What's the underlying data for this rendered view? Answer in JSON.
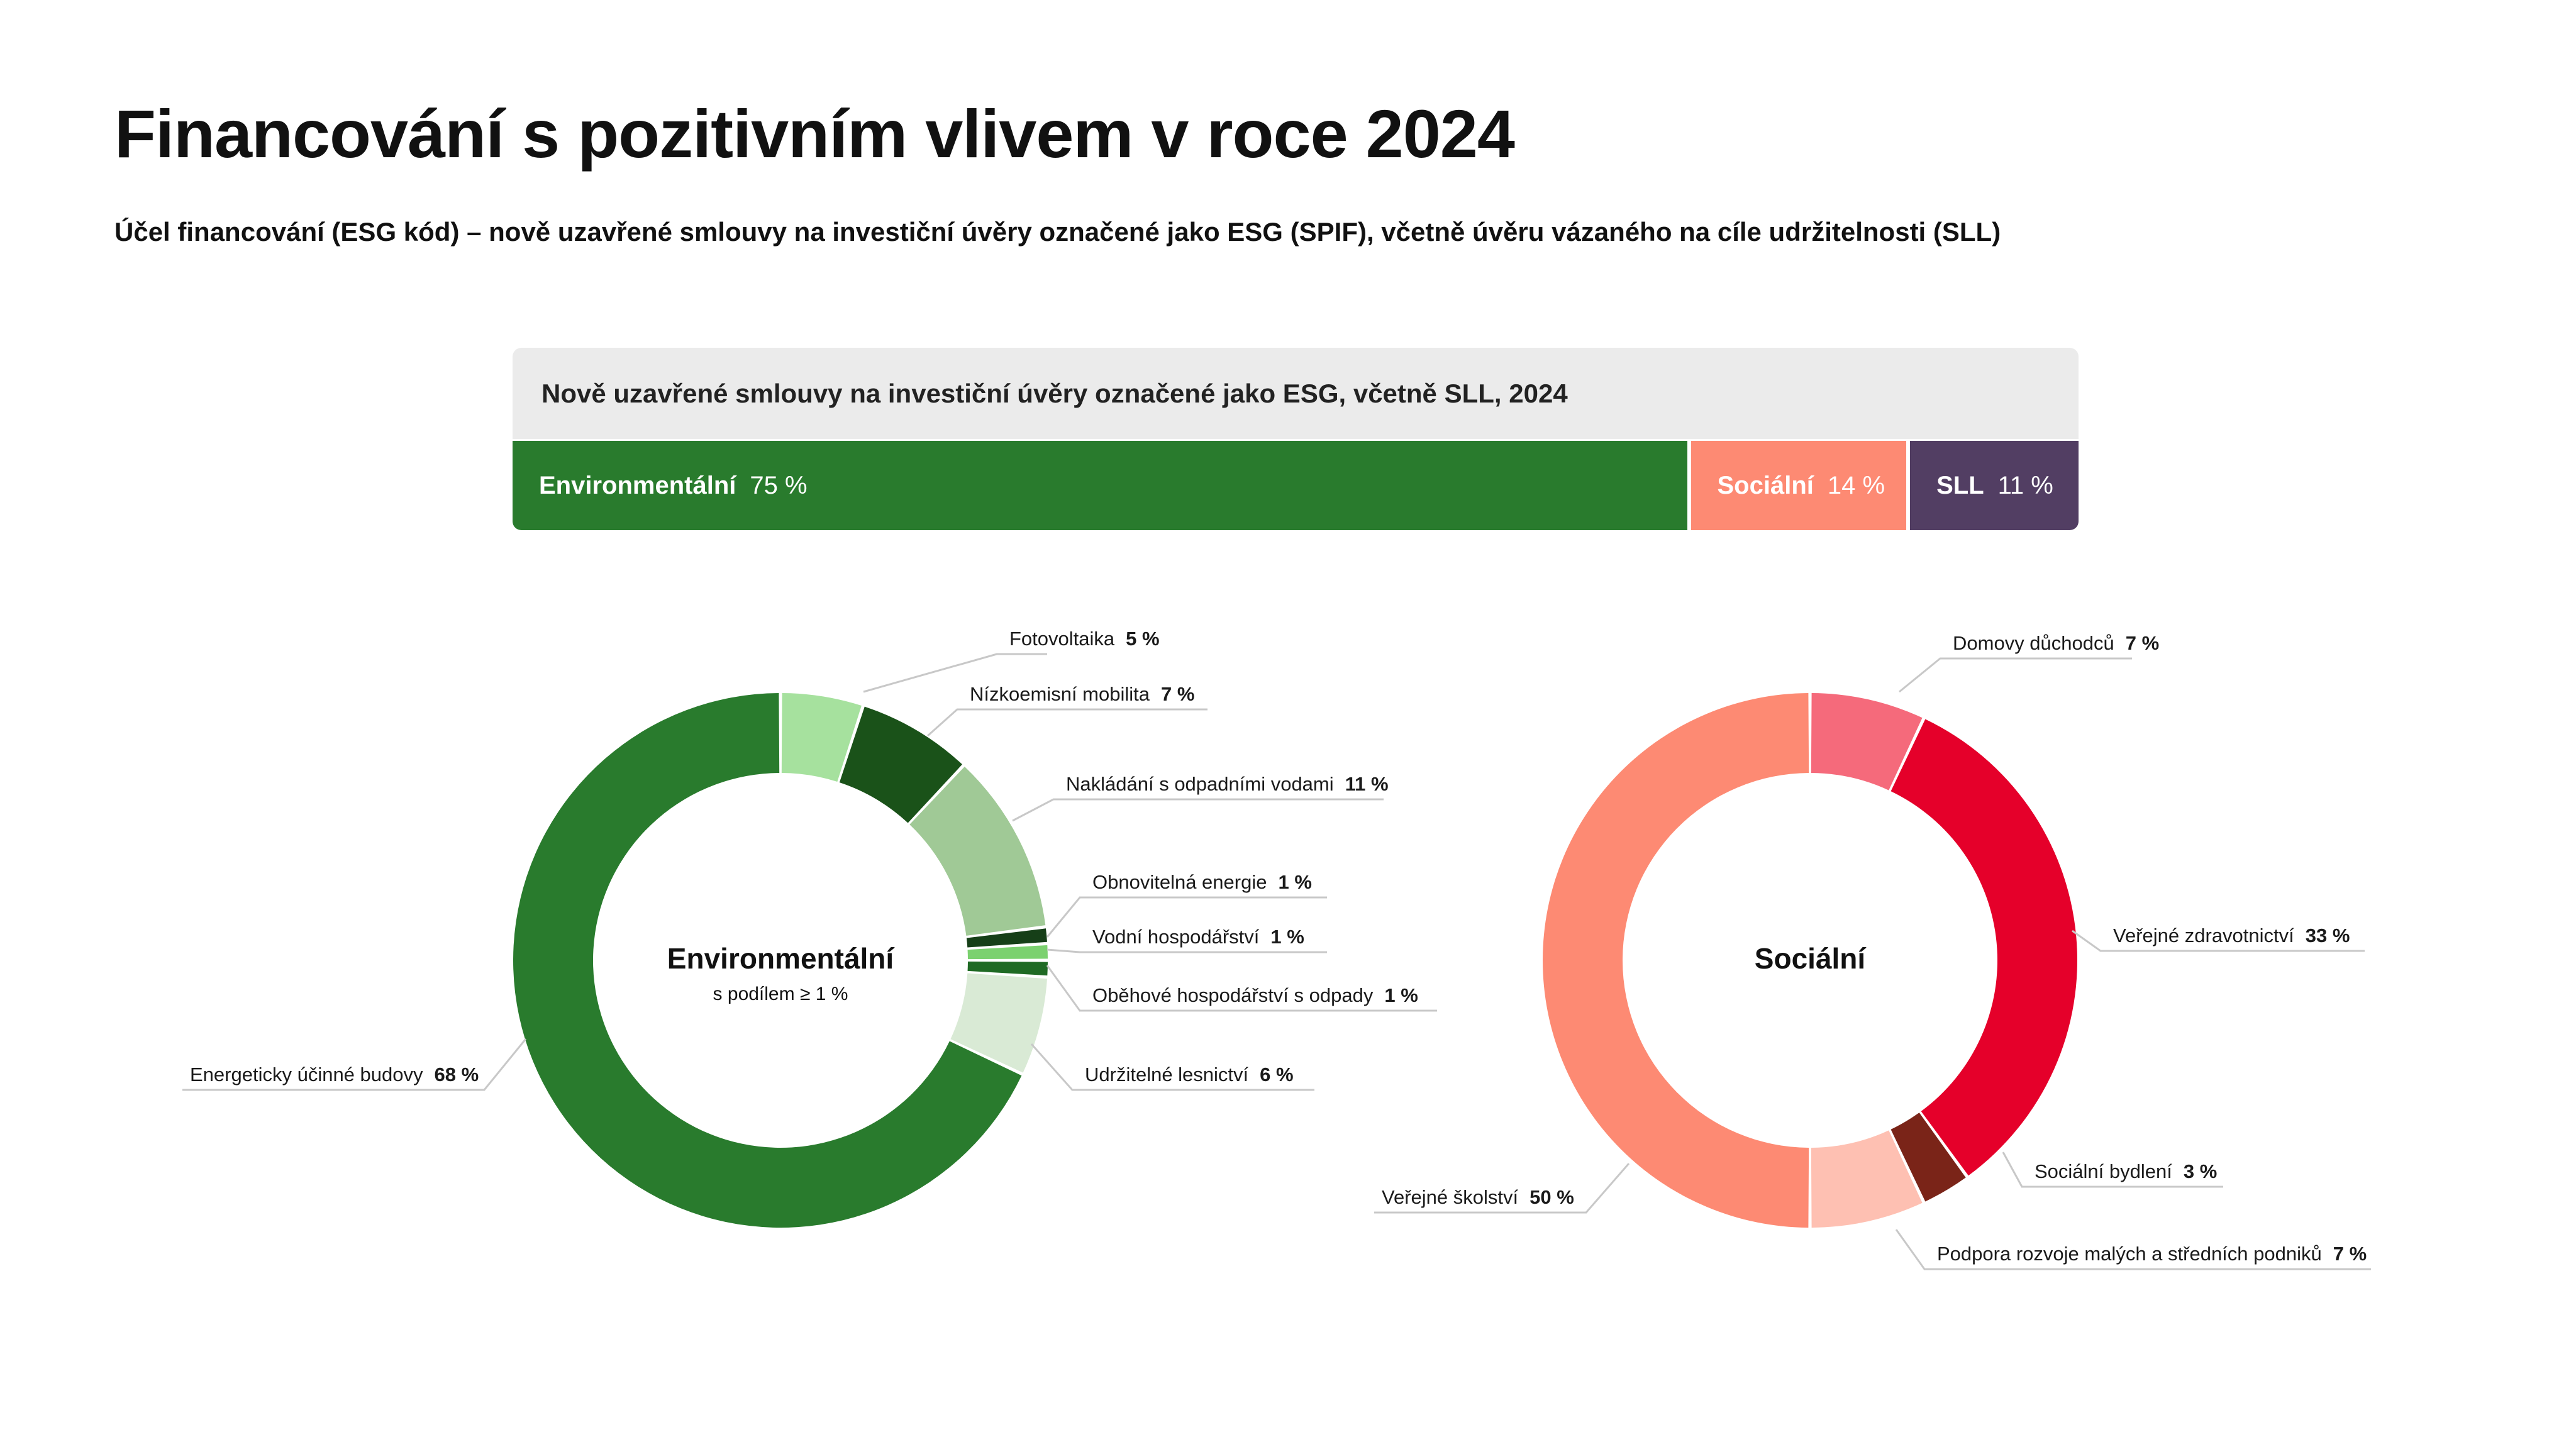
{
  "title": "Financování s pozitivním vlivem v roce 2024",
  "subtitle": "Účel financování (ESG kód) – nově uzavřené smlouvy na investiční úvěry označené jako ESG (SPIF), včetně úvěru vázaného na cíle udržitelnosti (SLL)",
  "chart_data": [
    {
      "type": "bar",
      "orientation": "horizontal-stacked",
      "title": "Nově uzavřené smlouvy na investiční úvěry označené jako ESG, včetně SLL, 2024",
      "segments": [
        {
          "label": "Environmentální",
          "value": 75,
          "value_label": "75 %",
          "color": "#297b2d"
        },
        {
          "label": "Sociální",
          "value": 14,
          "value_label": "14 %",
          "color": "#fd8a73"
        },
        {
          "label": "SLL",
          "value": 11,
          "value_label": "11 %",
          "color": "#523e63"
        }
      ]
    },
    {
      "type": "pie",
      "variant": "donut",
      "title": "Environmentální",
      "subtitle": "s podílem ≥ 1 %",
      "slices": [
        {
          "label": "Fotovoltaika",
          "value": 5,
          "value_label": "5 %",
          "color": "#a6e19e"
        },
        {
          "label": "Nízkoemisní mobilita",
          "value": 7,
          "value_label": "7 %",
          "color": "#1a5219"
        },
        {
          "label": "Nakládání s odpadními vodami",
          "value": 11,
          "value_label": "11 %",
          "color": "#a0c996"
        },
        {
          "label": "Obnovitelná energie",
          "value": 1,
          "value_label": "1 %",
          "color": "#163f18"
        },
        {
          "label": "Vodní hospodářství",
          "value": 1,
          "value_label": "1 %",
          "color": "#7bd16f"
        },
        {
          "label": "Oběhové hospodářství s odpady",
          "value": 1,
          "value_label": "1 %",
          "color": "#1f6a24"
        },
        {
          "label": "Udržitelné lesnictví",
          "value": 6,
          "value_label": "6 %",
          "color": "#d9ead5"
        },
        {
          "label": "Energeticky účinné budovy",
          "value": 68,
          "value_label": "68 %",
          "color": "#297b2d"
        }
      ]
    },
    {
      "type": "pie",
      "variant": "donut",
      "title": "Sociální",
      "slices": [
        {
          "label": "Domovy důchodců",
          "value": 7,
          "value_label": "7 %",
          "color": "#f56a7b"
        },
        {
          "label": "Veřejné zdravotnictví",
          "value": 33,
          "value_label": "33 %",
          "color": "#e5002a"
        },
        {
          "label": "Sociální bydlení",
          "value": 3,
          "value_label": "3 %",
          "color": "#7a2418"
        },
        {
          "label": "Podpora rozvoje malých a středních podniků",
          "value": 7,
          "value_label": "7 %",
          "color": "#fec0b2"
        },
        {
          "label": "Veřejné školství",
          "value": 50,
          "value_label": "50 %",
          "color": "#fd8a73"
        }
      ]
    }
  ]
}
